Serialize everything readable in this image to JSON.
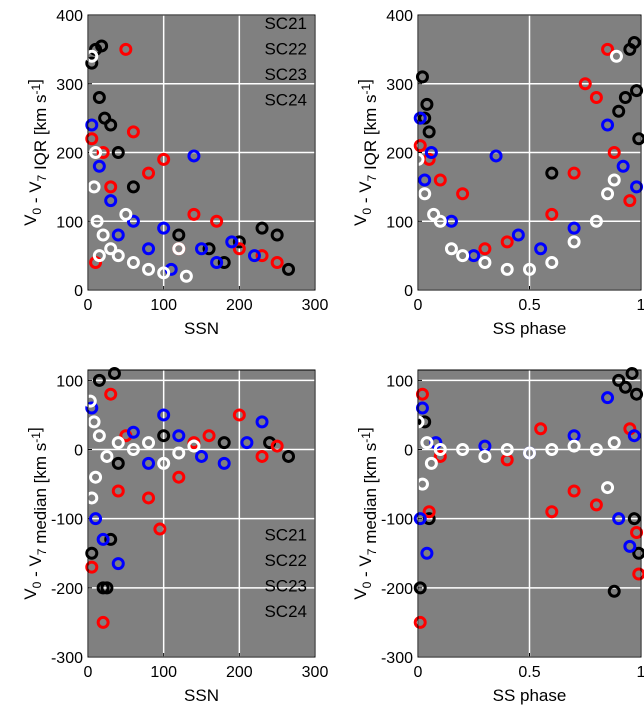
{
  "chart_data": [
    {
      "type": "scatter",
      "x_label": "SSN",
      "y_label": [
        "V",
        "0",
        " - V",
        "7",
        " IQR [km s",
        "-1",
        "]"
      ],
      "xlim": [
        0,
        300
      ],
      "xticks": [
        0,
        100,
        200,
        300
      ],
      "ylim": [
        0,
        400
      ],
      "yticks": [
        0,
        100,
        200,
        300,
        400
      ],
      "grid": true,
      "legend": "upper right",
      "series": [
        {
          "name": "SC21",
          "color": "#000000",
          "x": [
            5,
            10,
            18,
            15,
            22,
            30,
            40,
            60,
            120,
            160,
            200,
            230,
            250,
            265,
            180
          ],
          "values": [
            330,
            350,
            355,
            280,
            250,
            240,
            200,
            150,
            80,
            60,
            70,
            90,
            80,
            30,
            40
          ]
        },
        {
          "name": "SC22",
          "color": "#ff0000",
          "x": [
            5,
            20,
            50,
            60,
            80,
            100,
            140,
            170,
            200,
            230,
            250,
            120,
            30,
            10
          ],
          "values": [
            220,
            200,
            350,
            230,
            170,
            190,
            110,
            100,
            60,
            50,
            40,
            60,
            150,
            40
          ]
        },
        {
          "name": "SC23",
          "color": "#0000ff",
          "x": [
            5,
            15,
            30,
            60,
            100,
            140,
            150,
            170,
            190,
            220,
            110,
            80,
            40
          ],
          "values": [
            240,
            180,
            130,
            100,
            90,
            195,
            60,
            40,
            70,
            50,
            30,
            60,
            80
          ]
        },
        {
          "name": "SC24",
          "color": "#ffffff",
          "x": [
            5,
            8,
            10,
            12,
            20,
            30,
            40,
            60,
            80,
            100,
            120,
            130,
            50,
            15
          ],
          "values": [
            340,
            150,
            200,
            100,
            80,
            60,
            50,
            40,
            30,
            25,
            60,
            20,
            110,
            50
          ]
        }
      ]
    },
    {
      "type": "scatter",
      "x_label": "SS phase",
      "y_label": [
        "V",
        "0",
        " - V",
        "7",
        " IQR [km s",
        "-1",
        "]"
      ],
      "xlim": [
        0,
        1
      ],
      "xticks": [
        0,
        0.5,
        1
      ],
      "ylim": [
        0,
        400
      ],
      "yticks": [
        0,
        100,
        200,
        300,
        400
      ],
      "grid": true,
      "series": [
        {
          "color": "#000000",
          "x": [
            0.02,
            0.04,
            0.03,
            0.05,
            0.95,
            0.97,
            0.93,
            0.99,
            0.98,
            0.9,
            0.6
          ],
          "values": [
            310,
            270,
            250,
            230,
            350,
            360,
            280,
            220,
            290,
            260,
            170
          ]
        },
        {
          "color": "#ff0000",
          "x": [
            0.01,
            0.05,
            0.1,
            0.2,
            0.4,
            0.6,
            0.7,
            0.75,
            0.8,
            0.85,
            0.88,
            0.95,
            0.3
          ],
          "values": [
            210,
            190,
            160,
            140,
            70,
            110,
            170,
            300,
            280,
            350,
            200,
            130,
            60
          ]
        },
        {
          "color": "#0000ff",
          "x": [
            0.01,
            0.03,
            0.06,
            0.15,
            0.35,
            0.45,
            0.55,
            0.7,
            0.85,
            0.92,
            0.98,
            0.25
          ],
          "values": [
            250,
            160,
            200,
            100,
            195,
            80,
            60,
            90,
            240,
            180,
            150,
            50
          ]
        },
        {
          "color": "#ffffff",
          "x": [
            0,
            0.03,
            0.07,
            0.1,
            0.15,
            0.2,
            0.3,
            0.4,
            0.5,
            0.6,
            0.7,
            0.8,
            0.85,
            0.88,
            0.89
          ],
          "values": [
            190,
            140,
            110,
            100,
            60,
            50,
            40,
            30,
            30,
            40,
            70,
            100,
            140,
            160,
            340
          ]
        }
      ]
    },
    {
      "type": "scatter",
      "x_label": "SSN",
      "y_label": [
        "V",
        "0",
        " - V",
        "7",
        " median [km s",
        "-1",
        "]"
      ],
      "xlim": [
        0,
        300
      ],
      "xticks": [
        0,
        100,
        200,
        300
      ],
      "ylim": [
        -300,
        115
      ],
      "yticks": [
        -300,
        -200,
        -100,
        0,
        100
      ],
      "grid": true,
      "legend": "lower right",
      "series": [
        {
          "name": "SC21",
          "color": "#000000",
          "x": [
            5,
            15,
            20,
            25,
            35,
            40,
            30,
            100,
            180,
            240,
            265
          ],
          "values": [
            -150,
            100,
            -200,
            -200,
            110,
            -20,
            -130,
            20,
            10,
            10,
            -10
          ]
        },
        {
          "name": "SC22",
          "color": "#ff0000",
          "x": [
            5,
            20,
            30,
            40,
            50,
            80,
            95,
            120,
            160,
            200,
            230,
            250,
            140
          ],
          "values": [
            -170,
            -250,
            80,
            -60,
            20,
            -70,
            -115,
            -40,
            20,
            50,
            -10,
            5,
            10
          ]
        },
        {
          "name": "SC23",
          "color": "#0000ff",
          "x": [
            5,
            10,
            20,
            40,
            60,
            80,
            100,
            120,
            150,
            180,
            210,
            230
          ],
          "values": [
            60,
            -100,
            -130,
            -165,
            25,
            -20,
            50,
            20,
            -10,
            -20,
            10,
            40
          ]
        },
        {
          "name": "SC24",
          "color": "#ffffff",
          "x": [
            3,
            5,
            8,
            10,
            15,
            25,
            40,
            60,
            80,
            100,
            120,
            140
          ],
          "values": [
            70,
            -70,
            40,
            -40,
            20,
            -10,
            10,
            0,
            10,
            -20,
            -5,
            5
          ]
        }
      ]
    },
    {
      "type": "scatter",
      "x_label": "SS phase",
      "y_label": [
        "V",
        "0",
        " - V",
        "7",
        " median [km s",
        "-1",
        "]"
      ],
      "xlim": [
        0,
        1
      ],
      "xticks": [
        0,
        0.5,
        1
      ],
      "ylim": [
        -300,
        115
      ],
      "yticks": [
        -300,
        -200,
        -100,
        0,
        100
      ],
      "grid": true,
      "series": [
        {
          "color": "#000000",
          "x": [
            0.01,
            0.03,
            0.05,
            0.9,
            0.93,
            0.96,
            0.98,
            0.88,
            0.99,
            0.97
          ],
          "values": [
            -200,
            40,
            -100,
            100,
            90,
            110,
            80,
            -205,
            -150,
            -100
          ]
        },
        {
          "color": "#ff0000",
          "x": [
            0.01,
            0.02,
            0.05,
            0.1,
            0.4,
            0.55,
            0.6,
            0.7,
            0.8,
            0.95,
            0.98,
            0.99
          ],
          "values": [
            -250,
            80,
            -90,
            -10,
            -15,
            30,
            -90,
            -60,
            -80,
            30,
            -120,
            -180
          ]
        },
        {
          "color": "#0000ff",
          "x": [
            0.01,
            0.02,
            0.04,
            0.08,
            0.3,
            0.5,
            0.7,
            0.85,
            0.9,
            0.95,
            0.97
          ],
          "values": [
            -100,
            60,
            -150,
            10,
            5,
            -5,
            20,
            75,
            -100,
            -140,
            20
          ]
        },
        {
          "color": "#ffffff",
          "x": [
            0,
            0.02,
            0.04,
            0.06,
            0.1,
            0.2,
            0.3,
            0.4,
            0.5,
            0.6,
            0.7,
            0.8,
            0.85,
            0.88
          ],
          "values": [
            40,
            -50,
            10,
            -20,
            0,
            0,
            -10,
            0,
            -5,
            0,
            5,
            0,
            -55,
            10
          ]
        }
      ]
    }
  ]
}
